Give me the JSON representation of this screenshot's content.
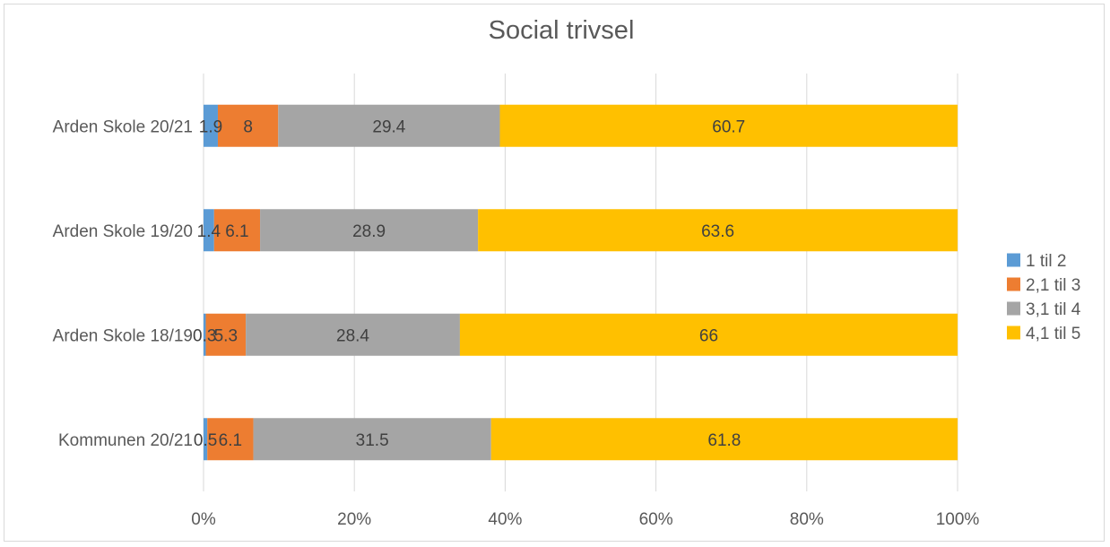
{
  "chart_data": {
    "type": "bar",
    "orientation": "horizontal",
    "stacked": "percent",
    "title": "Social trivsel",
    "categories": [
      "Arden Skole 20/21",
      "Arden Skole 19/20",
      "Arden Skole 18/19",
      "Kommunen 20/21"
    ],
    "series": [
      {
        "name": "1 til 2",
        "color": "#5b9bd5",
        "values": [
          1.9,
          1.4,
          0.3,
          0.5
        ],
        "labels": [
          "1.9",
          "1.4",
          "0.3",
          "0.5"
        ]
      },
      {
        "name": "2,1 til 3",
        "color": "#ed7d31",
        "values": [
          8,
          6.1,
          5.3,
          6.1
        ],
        "labels": [
          "8",
          "6.1",
          "5.3",
          "6.1"
        ]
      },
      {
        "name": "3,1 til 4",
        "color": "#a5a5a5",
        "values": [
          29.4,
          28.9,
          28.4,
          31.5
        ],
        "labels": [
          "29.4",
          "28.9",
          "28.4",
          "31.5"
        ]
      },
      {
        "name": "4,1 til 5",
        "color": "#ffc000",
        "values": [
          60.7,
          63.6,
          66,
          61.8
        ],
        "labels": [
          "60.7",
          "63.6",
          "66",
          "61.8"
        ]
      }
    ],
    "xlim": [
      0,
      100
    ],
    "xticks": [
      "0%",
      "20%",
      "40%",
      "60%",
      "80%",
      "100%"
    ],
    "grid": true,
    "legend": "right"
  }
}
